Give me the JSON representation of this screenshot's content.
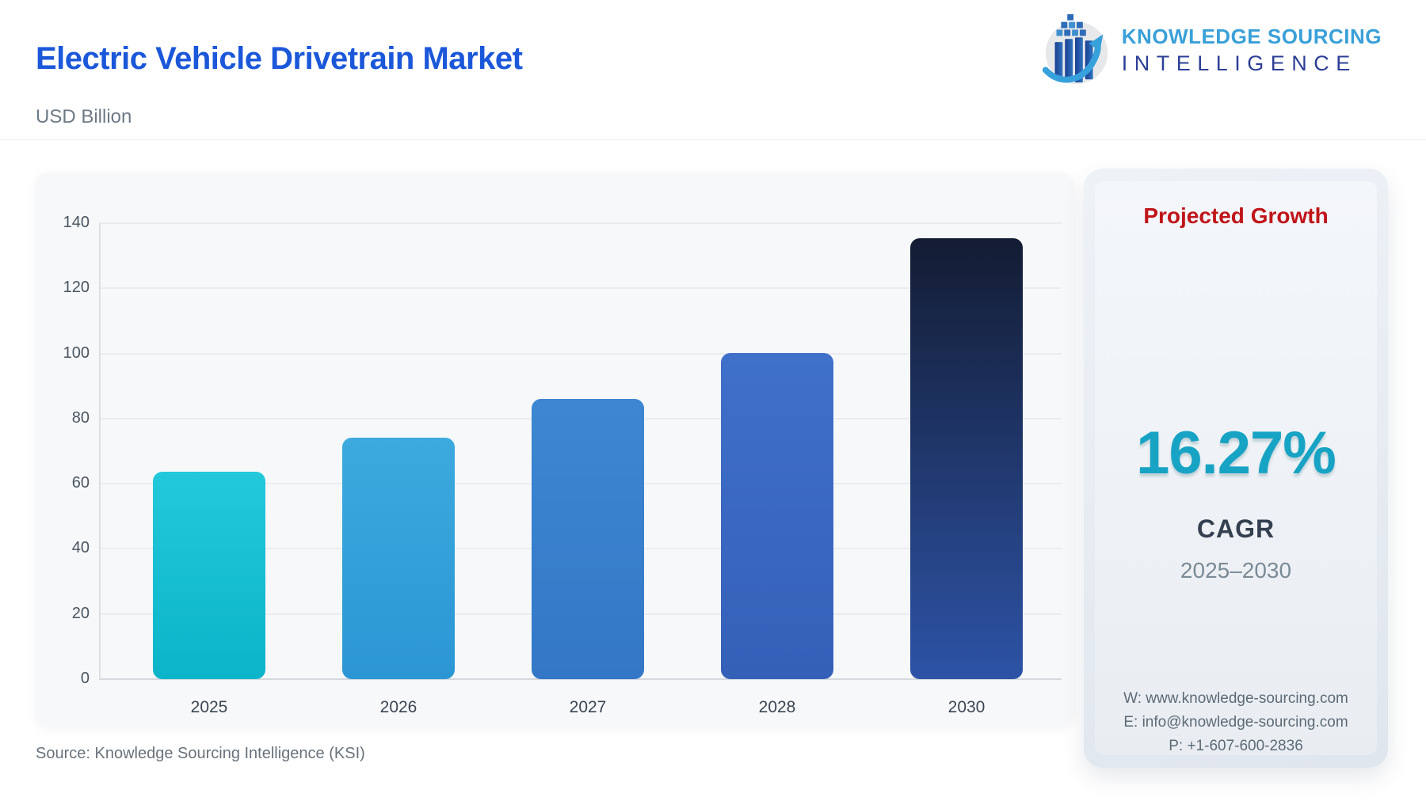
{
  "header": {
    "title": "Electric Vehicle Drivetrain Market",
    "subtitle": "USD Billion",
    "logo": {
      "line1": "KNOWLEDGE SOURCING",
      "line2": "INTELLIGENCE",
      "icon": "bar-growth-arrow-globe-icon"
    }
  },
  "chart_data": {
    "type": "bar",
    "title": "Electric Vehicle Drivetrain Market",
    "ylabel": "USD Billion",
    "xlabel": "",
    "categories": [
      "2025",
      "2026",
      "2027",
      "2028",
      "2030"
    ],
    "values": [
      63.7,
      74.1,
      86.1,
      100.1,
      135.4
    ],
    "ylim": [
      0,
      140
    ],
    "yticks": [
      0,
      20,
      40,
      60,
      80,
      100,
      120,
      140
    ],
    "grid": true,
    "legend": "none",
    "bar_gradients": [
      [
        "#22c9da",
        "#0cb4c9"
      ],
      [
        "#3caade",
        "#2b96d4"
      ],
      [
        "#3d87d2",
        "#3377c6"
      ],
      [
        "#3f70ca",
        "#3560b8"
      ],
      [
        "#131c33",
        "#2d53a6"
      ]
    ]
  },
  "panel": {
    "heading": "Projected Growth",
    "cagr_value": "16.27%",
    "cagr_label": "CAGR",
    "period": "2025–2030",
    "contact": {
      "website": "W: www.knowledge-sourcing.com",
      "email": "E: info@knowledge-sourcing.com",
      "phone": "P: +1-607-600-2836"
    }
  },
  "footer": {
    "source": "Source: Knowledge Sourcing Intelligence (KSI)"
  },
  "colors": {
    "title_blue": "#1b57d9",
    "heading_red": "#c01519",
    "cagr_teal": "#17a3c4",
    "logo_light_blue": "#3aa0d8",
    "logo_indigo": "#2e3f96",
    "gridline": "#eaecf0",
    "card_bg": "#f7f8fa"
  }
}
